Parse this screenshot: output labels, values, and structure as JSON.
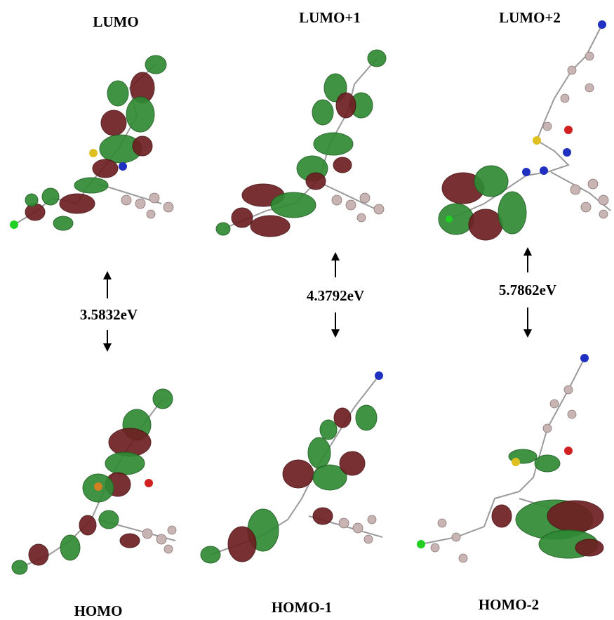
{
  "panels": [
    {
      "top": "LUMO",
      "gap": "3.5832eV",
      "bottom": "HOMO"
    },
    {
      "top": "LUMO+1",
      "gap": "4.3792eV",
      "bottom": "HOMO-1"
    },
    {
      "top": "LUMO+2",
      "gap": "5.7862eV",
      "bottom": "HOMO-2"
    }
  ]
}
